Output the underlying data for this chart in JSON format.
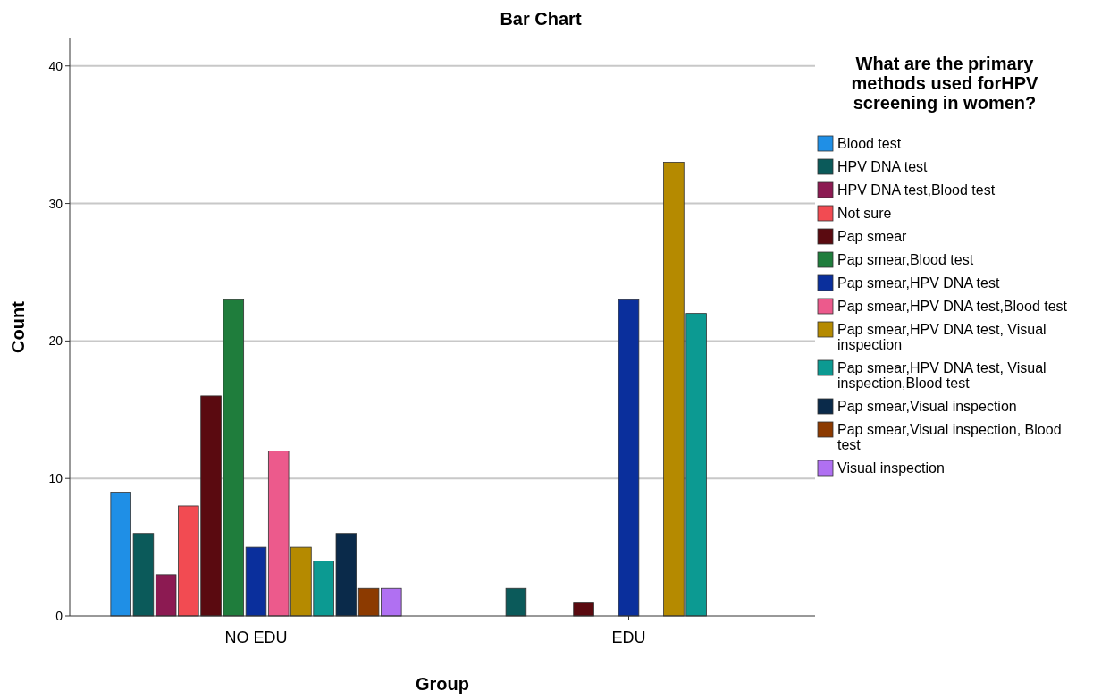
{
  "chart_data": {
    "type": "bar",
    "title": "Bar Chart",
    "xlabel": "Group",
    "ylabel": "Count",
    "legend_title": "What are the primary methods used forHPV screening in women?",
    "categories": [
      "NO EDU",
      "EDU"
    ],
    "ylim": [
      0,
      42
    ],
    "yticks": [
      0,
      10,
      20,
      30,
      40
    ],
    "grid": "y",
    "legend": "right",
    "series": [
      {
        "name": "Blood test",
        "color": "#1f8fe6",
        "values": [
          9,
          null
        ]
      },
      {
        "name": "HPV DNA test",
        "color": "#0b5a5a",
        "values": [
          6,
          2
        ]
      },
      {
        "name": "HPV DNA test,Blood test",
        "color": "#8c1a52",
        "values": [
          3,
          null
        ]
      },
      {
        "name": "Not sure",
        "color": "#f24b52",
        "values": [
          8,
          null
        ]
      },
      {
        "name": "Pap smear",
        "color": "#5a0a10",
        "values": [
          16,
          1
        ]
      },
      {
        "name": "Pap smear,Blood test",
        "color": "#1f7d3c",
        "values": [
          23,
          null
        ]
      },
      {
        "name": "Pap smear,HPV DNA test",
        "color": "#0a2f9c",
        "values": [
          5,
          23
        ]
      },
      {
        "name": "Pap smear,HPV DNA test,Blood test",
        "color": "#ec5a8c",
        "values": [
          12,
          null
        ]
      },
      {
        "name": "Pap smear,HPV DNA test, Visual inspection",
        "color": "#b58a00",
        "values": [
          5,
          33
        ]
      },
      {
        "name": "Pap smear,HPV DNA test, Visual inspection,Blood test",
        "color": "#0c9a92",
        "values": [
          4,
          22
        ]
      },
      {
        "name": "Pap smear,Visual inspection",
        "color": "#0a2a4a",
        "values": [
          6,
          null
        ]
      },
      {
        "name": "Pap smear,Visual inspection, Blood test",
        "color": "#8c3a00",
        "values": [
          2,
          null
        ]
      },
      {
        "name": "Visual inspection",
        "color": "#b070f2",
        "values": [
          2,
          null
        ]
      }
    ]
  }
}
